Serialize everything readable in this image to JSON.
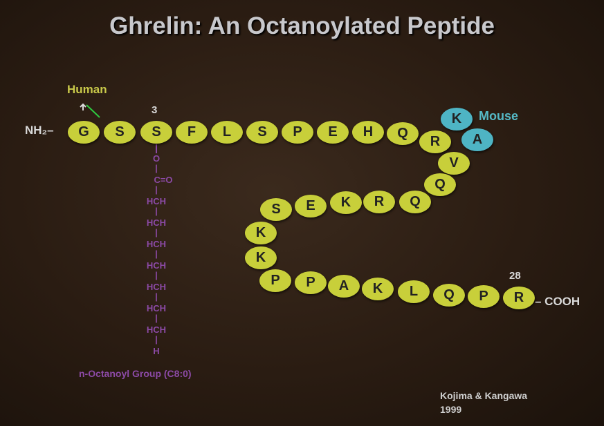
{
  "title": "Ghrelin: An Octanoylated Peptide",
  "labels": {
    "human": "Human",
    "mouse": "Mouse",
    "pos3": "3",
    "pos28": "28",
    "n_terminus": "NH₂–",
    "c_terminus": "– COOH",
    "octanoyl": "n-Octanoyl Group (C8:0)"
  },
  "citation": {
    "authors": "Kojima & Kangawa",
    "year": "1999"
  },
  "residues": [
    "G",
    "S",
    "S",
    "F",
    "L",
    "S",
    "P",
    "E",
    "H",
    "Q",
    "R",
    "V",
    "Q",
    "Q",
    "R",
    "K",
    "E",
    "S",
    "K",
    "K",
    "P",
    "P",
    "A",
    "K",
    "L",
    "Q",
    "P",
    "R"
  ],
  "mouse_residues": [
    "K",
    "A"
  ],
  "side_chain": [
    "O",
    "C=O",
    "HCH",
    "HCH",
    "HCH",
    "HCH",
    "HCH",
    "HCH",
    "HCH",
    "H"
  ],
  "colors": {
    "residue": "#c8cf3a",
    "mouse": "#4eb4c4",
    "side_chain": "#8c4aa6",
    "title": "#c8c8cc"
  }
}
